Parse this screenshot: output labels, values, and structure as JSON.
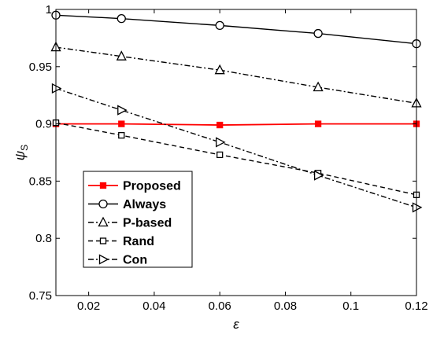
{
  "chart_data": {
    "type": "line",
    "xlabel": "ε",
    "ylabel": "ψ",
    "ylabel_sub": "S",
    "xlim": [
      0.01,
      0.12
    ],
    "ylim": [
      0.75,
      1.0
    ],
    "xticks": [
      0.02,
      0.04,
      0.06,
      0.08,
      0.1,
      0.12
    ],
    "xtick_labels": [
      "0.02",
      "0.04",
      "0.06",
      "0.08",
      "0.1",
      "0.12"
    ],
    "yticks": [
      0.75,
      0.8,
      0.85,
      0.9,
      0.95,
      1.0
    ],
    "ytick_labels": [
      "0.75",
      "0.8",
      "0.85",
      "0.9",
      "0.95",
      "1"
    ],
    "grid": false,
    "legend_position": "lower-left",
    "x": [
      0.01,
      0.03,
      0.06,
      0.09,
      0.12
    ],
    "series": [
      {
        "name": "Proposed",
        "values": [
          0.9,
          0.9,
          0.899,
          0.9,
          0.9
        ],
        "color": "#ff0000",
        "dash": "solid",
        "marker": "square-filled"
      },
      {
        "name": "Always",
        "values": [
          0.995,
          0.992,
          0.986,
          0.979,
          0.97
        ],
        "color": "#000000",
        "dash": "solid",
        "marker": "circle"
      },
      {
        "name": "P-based",
        "values": [
          0.967,
          0.959,
          0.947,
          0.932,
          0.918
        ],
        "color": "#000000",
        "dash": "dashdot",
        "marker": "triangle-up"
      },
      {
        "name": "Rand",
        "values": [
          0.901,
          0.89,
          0.873,
          0.857,
          0.838
        ],
        "color": "#000000",
        "dash": "dashed",
        "marker": "square"
      },
      {
        "name": "Con",
        "values": [
          0.931,
          0.912,
          0.884,
          0.855,
          0.827
        ],
        "color": "#000000",
        "dash": "dashdot",
        "marker": "triangle-right"
      }
    ]
  }
}
